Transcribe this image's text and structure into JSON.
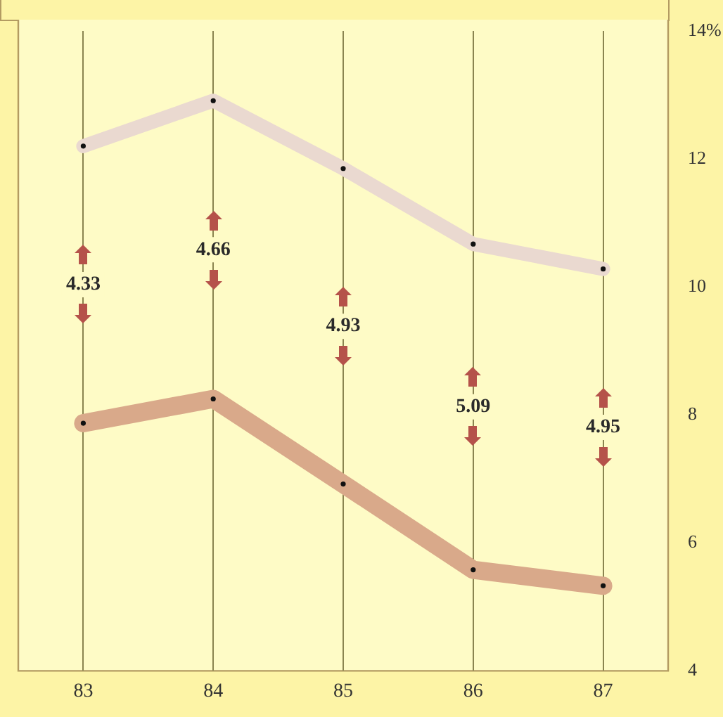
{
  "chart_data": {
    "type": "line",
    "categories": [
      "83",
      "84",
      "85",
      "86",
      "87"
    ],
    "series": [
      {
        "color": "#ead9d0",
        "values": [
          12.2,
          12.91,
          11.85,
          10.67,
          10.28
        ]
      },
      {
        "color": "#d9a98a",
        "values": [
          7.87,
          8.25,
          6.92,
          5.58,
          5.33
        ]
      }
    ],
    "ylim": [
      4,
      14
    ],
    "yticks": [
      4,
      6,
      8,
      10,
      12,
      {
        "value": 14,
        "label": "14%"
      }
    ],
    "grid": "x",
    "marker": "circle",
    "annotations": [
      "4.33",
      "4.66",
      "4.93",
      "5.09",
      "4.95"
    ]
  }
}
